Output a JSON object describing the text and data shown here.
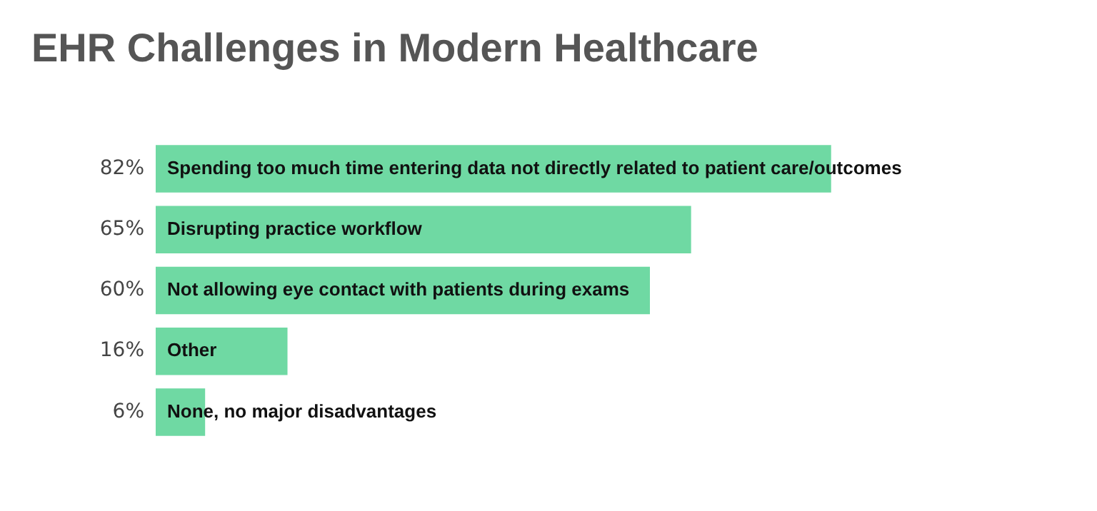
{
  "chart_data": {
    "type": "bar",
    "orientation": "horizontal",
    "title": "EHR Challenges in Modern Healthcare",
    "categories": [
      "Spending too much time entering data not directly related to patient care/outcomes",
      "Disrupting practice workflow",
      "Not allowing eye contact with patients during exams",
      "Other",
      "None, no major disadvantages"
    ],
    "values": [
      82,
      65,
      60,
      16,
      6
    ],
    "value_labels": [
      "82%",
      "65%",
      "60%",
      "16%",
      "6%"
    ],
    "color": "#6fd9a3",
    "legend": false
  }
}
